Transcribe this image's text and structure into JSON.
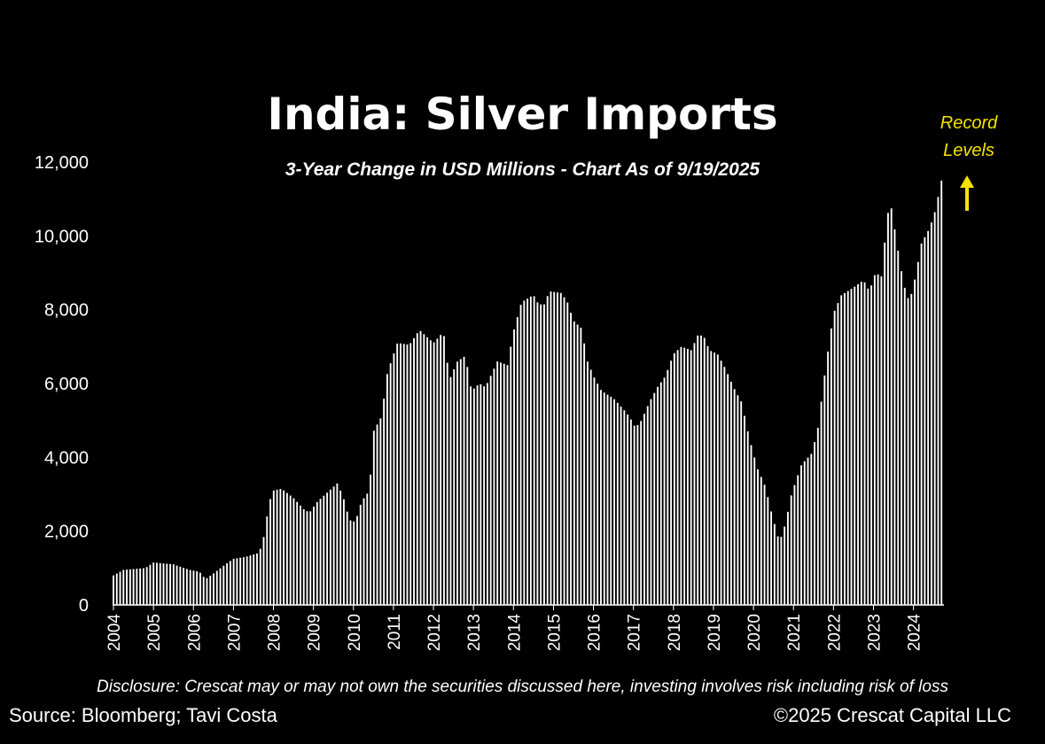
{
  "chart_data": {
    "type": "bar",
    "title": "India: Silver Imports",
    "subtitle": "3-Year Change in USD Millions - Chart As of 9/19/2025",
    "xlabel": "",
    "ylabel": "",
    "ylim": [
      0,
      12000
    ],
    "yticks": [
      "0",
      "2,000",
      "4,000",
      "6,000",
      "8,000",
      "10,000",
      "12,000"
    ],
    "xticks": [
      "2004",
      "2005",
      "2006",
      "2007",
      "2008",
      "2009",
      "2010",
      "2011",
      "2012",
      "2013",
      "2014",
      "2015",
      "2016",
      "2017",
      "2018",
      "2019",
      "2020",
      "2021",
      "2022",
      "2023",
      "2024"
    ],
    "start_year": 2004,
    "bar_color": "#ffffff",
    "keypoints": [
      [
        2004.0,
        800
      ],
      [
        2004.25,
        950
      ],
      [
        2004.8,
        1000
      ],
      [
        2005.0,
        1150
      ],
      [
        2005.5,
        1100
      ],
      [
        2005.9,
        950
      ],
      [
        2006.15,
        900
      ],
      [
        2006.3,
        700
      ],
      [
        2006.5,
        850
      ],
      [
        2006.8,
        1100
      ],
      [
        2007.0,
        1250
      ],
      [
        2007.3,
        1300
      ],
      [
        2007.6,
        1400
      ],
      [
        2007.72,
        1600
      ],
      [
        2007.9,
        2800
      ],
      [
        2008.0,
        3100
      ],
      [
        2008.2,
        3150
      ],
      [
        2008.5,
        2900
      ],
      [
        2008.75,
        2600
      ],
      [
        2008.9,
        2500
      ],
      [
        2009.1,
        2800
      ],
      [
        2009.4,
        3100
      ],
      [
        2009.6,
        3300
      ],
      [
        2009.75,
        2900
      ],
      [
        2009.9,
        2300
      ],
      [
        2010.05,
        2250
      ],
      [
        2010.2,
        2800
      ],
      [
        2010.4,
        3100
      ],
      [
        2010.5,
        4700
      ],
      [
        2010.7,
        5100
      ],
      [
        2010.85,
        6300
      ],
      [
        2011.1,
        7100
      ],
      [
        2011.4,
        7050
      ],
      [
        2011.65,
        7450
      ],
      [
        2012.0,
        7100
      ],
      [
        2012.25,
        7400
      ],
      [
        2012.4,
        6100
      ],
      [
        2012.6,
        6600
      ],
      [
        2012.8,
        6750
      ],
      [
        2012.95,
        5800
      ],
      [
        2013.15,
        6000
      ],
      [
        2013.3,
        5900
      ],
      [
        2013.6,
        6600
      ],
      [
        2013.85,
        6500
      ],
      [
        2014.0,
        7400
      ],
      [
        2014.2,
        8200
      ],
      [
        2014.5,
        8400
      ],
      [
        2014.6,
        8200
      ],
      [
        2014.75,
        8100
      ],
      [
        2014.9,
        8500
      ],
      [
        2015.2,
        8450
      ],
      [
        2015.35,
        8200
      ],
      [
        2015.5,
        7700
      ],
      [
        2015.7,
        7500
      ],
      [
        2015.85,
        6600
      ],
      [
        2016.0,
        6200
      ],
      [
        2016.2,
        5800
      ],
      [
        2016.5,
        5600
      ],
      [
        2016.75,
        5300
      ],
      [
        2016.9,
        5100
      ],
      [
        2017.05,
        4800
      ],
      [
        2017.2,
        5000
      ],
      [
        2017.4,
        5500
      ],
      [
        2017.6,
        5900
      ],
      [
        2017.8,
        6200
      ],
      [
        2018.0,
        6800
      ],
      [
        2018.2,
        7000
      ],
      [
        2018.45,
        6900
      ],
      [
        2018.6,
        7300
      ],
      [
        2018.75,
        7300
      ],
      [
        2018.9,
        6900
      ],
      [
        2019.1,
        6800
      ],
      [
        2019.3,
        6400
      ],
      [
        2019.5,
        5900
      ],
      [
        2019.7,
        5500
      ],
      [
        2019.9,
        4500
      ],
      [
        2020.1,
        3700
      ],
      [
        2020.3,
        3200
      ],
      [
        2020.45,
        2500
      ],
      [
        2020.65,
        1700
      ],
      [
        2020.8,
        2200
      ],
      [
        2020.95,
        3000
      ],
      [
        2021.2,
        3800
      ],
      [
        2021.45,
        4100
      ],
      [
        2021.6,
        4700
      ],
      [
        2021.8,
        6400
      ],
      [
        2022.0,
        7900
      ],
      [
        2022.2,
        8400
      ],
      [
        2022.5,
        8600
      ],
      [
        2022.75,
        8800
      ],
      [
        2022.9,
        8500
      ],
      [
        2023.05,
        9000
      ],
      [
        2023.2,
        8900
      ],
      [
        2023.35,
        10600
      ],
      [
        2023.45,
        10750
      ],
      [
        2023.6,
        9700
      ],
      [
        2023.75,
        8700
      ],
      [
        2023.9,
        8200
      ],
      [
        2024.05,
        8900
      ],
      [
        2024.2,
        9800
      ],
      [
        2024.4,
        10200
      ],
      [
        2024.55,
        10700
      ],
      [
        2024.7,
        11500
      ]
    ],
    "bars_per_year": 12
  },
  "annotation": {
    "line1": "Record",
    "line2": "Levels",
    "color": "#f5e400"
  },
  "disclosure": "Disclosure: Crescat may or may not own the securities discussed here, investing involves risk including risk of loss",
  "source": "Source: Bloomberg; Tavi Costa",
  "copyright": "©2025 Crescat Capital LLC"
}
